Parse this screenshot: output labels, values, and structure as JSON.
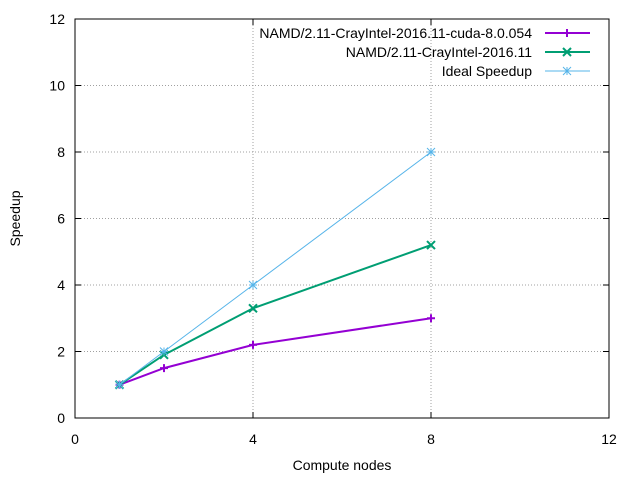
{
  "chart_data": {
    "type": "line",
    "title": "",
    "xlabel": "Compute nodes",
    "ylabel": "Speedup",
    "xlim": [
      0,
      12
    ],
    "ylim": [
      0,
      12
    ],
    "xticks": [
      0,
      4,
      8,
      12
    ],
    "yticks": [
      0,
      2,
      4,
      6,
      8,
      10,
      12
    ],
    "grid": "dotted at x=4 and x=8, dotted at every y tick",
    "legend_position": "top-right",
    "series": [
      {
        "name": "NAMD/2.11-CrayIntel-2016.11-cuda-8.0.054",
        "color": "#9400d3",
        "marker": "plus",
        "x": [
          1,
          2,
          4,
          8
        ],
        "y": [
          1.0,
          1.5,
          2.2,
          3.0
        ]
      },
      {
        "name": "NAMD/2.11-CrayIntel-2016.11",
        "color": "#009e73",
        "marker": "cross",
        "x": [
          1,
          2,
          4,
          8
        ],
        "y": [
          1.0,
          1.9,
          3.3,
          5.2
        ]
      },
      {
        "name": "Ideal Speedup",
        "color": "#56b4e9",
        "marker": "star",
        "x": [
          1,
          2,
          4,
          8
        ],
        "y": [
          1,
          2,
          4,
          8
        ]
      }
    ]
  }
}
